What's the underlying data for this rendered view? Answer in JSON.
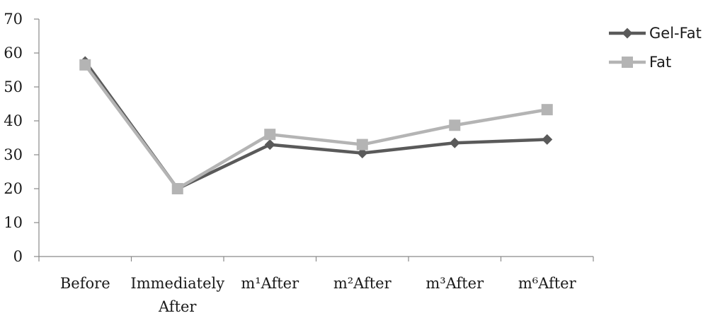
{
  "chart_data": {
    "type": "line",
    "title": "",
    "xlabel": "",
    "ylabel": "",
    "categories": [
      [
        "Before"
      ],
      [
        "Immediately",
        "After"
      ],
      [
        "m¹After"
      ],
      [
        "m²After"
      ],
      [
        "m³After"
      ],
      [
        "m⁶After"
      ]
    ],
    "yticks": [
      "0",
      "10",
      "20",
      "30",
      "40",
      "50",
      "60",
      "70"
    ],
    "ylim": [
      0,
      70
    ],
    "grid": false,
    "legend_position": "top-right",
    "series": [
      {
        "name": "Gel-Fat",
        "values": [
          57.5,
          20,
          33,
          30.5,
          33.5,
          34.5
        ],
        "color": "#5a5a5a",
        "marker": "diamond"
      },
      {
        "name": "Fat",
        "values": [
          56.5,
          20,
          36,
          33,
          38.7,
          43.3
        ],
        "color": "#b4b4b4",
        "marker": "square"
      }
    ]
  }
}
